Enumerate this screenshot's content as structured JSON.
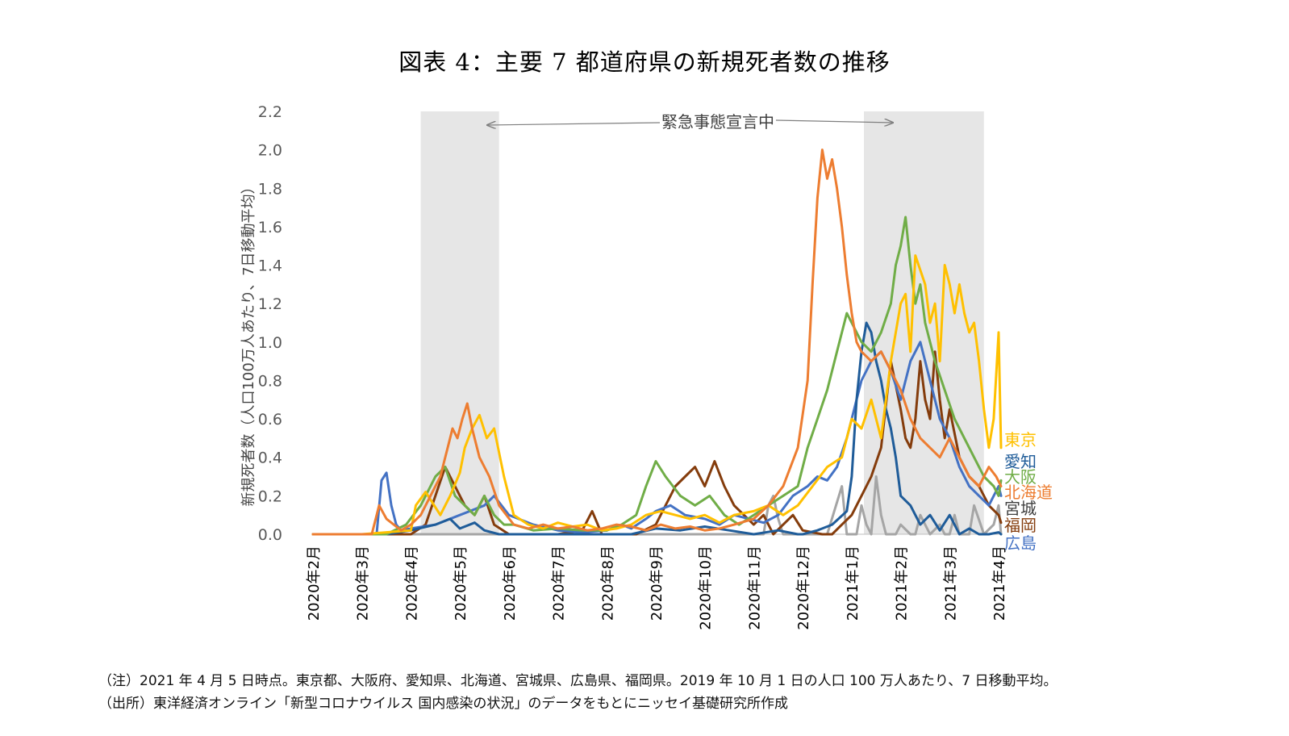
{
  "title": "図表 4：主要 7 都道府県の新規死者数の推移",
  "notes": {
    "note": "（注）2021 年 4 月 5 日時点。東京都、大阪府、愛知県、北海道、宮城県、広島県、福岡県。2019 年 10 月 1 日の人口 100 万人あたり、7 日移動平均。",
    "source": "（出所）東洋経済オンライン「新型コロナウイルス 国内感染の状況」のデータをもとにニッセイ基礎研究所作成"
  },
  "chart_data": {
    "type": "line",
    "title": "図表 4：主要 7 都道府県の新規死者数の推移",
    "ylabel": "新規死者数（人口100万人あたり、7日移動平均）",
    "xlabel": "",
    "ylim": [
      0,
      2.2
    ],
    "yticks": [
      "0.0",
      "0.2",
      "0.4",
      "0.6",
      "0.8",
      "1.0",
      "1.2",
      "1.4",
      "1.6",
      "1.8",
      "2.0",
      "2.2"
    ],
    "x_range_months": [
      0,
      14
    ],
    "categories": [
      "2020年2月",
      "2020年3月",
      "2020年4月",
      "2020年5月",
      "2020年6月",
      "2020年7月",
      "2020年8月",
      "2020年9月",
      "2020年10月",
      "2020年11月",
      "2020年12月",
      "2021年1月",
      "2021年2月",
      "2021年3月",
      "2021年4月"
    ],
    "emergency_periods": [
      [
        2.2,
        3.8
      ],
      [
        11.25,
        13.7
      ]
    ],
    "annotation": "緊急事態宣言中",
    "series": [
      {
        "name": "東京",
        "color": "#FFC000",
        "x": [
          0,
          1,
          1.5,
          2,
          2.1,
          2.3,
          2.6,
          2.8,
          3,
          3.1,
          3.25,
          3.4,
          3.55,
          3.7,
          3.9,
          4.1,
          4.4,
          4.7,
          5,
          5.3,
          5.6,
          5.9,
          6.2,
          6.5,
          6.8,
          7.1,
          7.4,
          7.7,
          8,
          8.3,
          8.6,
          9,
          9.3,
          9.6,
          9.9,
          10.2,
          10.5,
          10.8,
          11,
          11.2,
          11.4,
          11.6,
          11.8,
          12,
          12.1,
          12.2,
          12.3,
          12.5,
          12.6,
          12.7,
          12.8,
          12.9,
          13,
          13.1,
          13.2,
          13.3,
          13.4,
          13.5,
          13.6,
          13.7,
          13.8,
          13.9,
          14,
          14.05
        ],
        "values": [
          0,
          0,
          0.01,
          0.02,
          0.15,
          0.22,
          0.1,
          0.2,
          0.32,
          0.45,
          0.55,
          0.62,
          0.5,
          0.55,
          0.3,
          0.1,
          0.05,
          0.03,
          0.06,
          0.04,
          0.05,
          0.02,
          0.03,
          0.05,
          0.1,
          0.12,
          0.1,
          0.08,
          0.1,
          0.06,
          0.1,
          0.12,
          0.15,
          0.1,
          0.15,
          0.25,
          0.35,
          0.4,
          0.6,
          0.55,
          0.7,
          0.5,
          0.9,
          1.2,
          1.25,
          0.95,
          1.45,
          1.3,
          1.1,
          1.2,
          0.9,
          1.4,
          1.3,
          1.15,
          1.3,
          1.15,
          1.05,
          1.1,
          0.9,
          0.65,
          0.45,
          0.6,
          1.05,
          0.45
        ]
      },
      {
        "name": "愛知",
        "color": "#1F5C99",
        "x": [
          0,
          1.5,
          2,
          2.5,
          2.8,
          3,
          3.3,
          3.5,
          3.8,
          4.5,
          5,
          6,
          6.5,
          7,
          7.5,
          8,
          8.5,
          9,
          9.5,
          9.9,
          10,
          10.3,
          10.6,
          10.9,
          11,
          11.05,
          11.1,
          11.2,
          11.3,
          11.4,
          11.5,
          11.6,
          11.7,
          11.8,
          11.9,
          12,
          12.2,
          12.4,
          12.6,
          12.8,
          13,
          13.2,
          13.4,
          13.6,
          13.8,
          14,
          14.05
        ],
        "values": [
          0,
          0,
          0.02,
          0.05,
          0.08,
          0.03,
          0.06,
          0.02,
          0,
          0,
          0,
          0,
          0,
          0.03,
          0.02,
          0.04,
          0.02,
          0,
          0.02,
          0,
          0,
          0.02,
          0.05,
          0.12,
          0.3,
          0.5,
          0.7,
          0.95,
          1.1,
          1.05,
          0.9,
          0.8,
          0.65,
          0.55,
          0.4,
          0.2,
          0.15,
          0.05,
          0.1,
          0.02,
          0.1,
          0,
          0.03,
          0,
          0,
          0.01,
          0
        ]
      },
      {
        "name": "大阪",
        "color": "#70AD47",
        "x": [
          0,
          1.5,
          1.9,
          2.2,
          2.5,
          2.7,
          2.9,
          3.1,
          3.3,
          3.5,
          3.7,
          3.9,
          4.1,
          4.5,
          5,
          5.5,
          6,
          6.3,
          6.6,
          6.8,
          7,
          7.2,
          7.5,
          7.8,
          8.1,
          8.4,
          8.7,
          9,
          9.3,
          9.6,
          9.9,
          10.1,
          10.3,
          10.5,
          10.7,
          10.9,
          11,
          11.2,
          11.4,
          11.6,
          11.8,
          11.9,
          12,
          12.1,
          12.2,
          12.3,
          12.4,
          12.5,
          12.7,
          12.9,
          13.1,
          13.3,
          13.5,
          13.7,
          13.9,
          14,
          14.05
        ],
        "values": [
          0,
          0,
          0.05,
          0.15,
          0.3,
          0.35,
          0.2,
          0.15,
          0.1,
          0.2,
          0.1,
          0.05,
          0.05,
          0.02,
          0.03,
          0.02,
          0.02,
          0.05,
          0.1,
          0.25,
          0.38,
          0.3,
          0.2,
          0.15,
          0.2,
          0.1,
          0.05,
          0.1,
          0.15,
          0.2,
          0.25,
          0.45,
          0.6,
          0.75,
          0.95,
          1.15,
          1.1,
          1.0,
          0.95,
          1.05,
          1.2,
          1.4,
          1.5,
          1.65,
          1.4,
          1.2,
          1.3,
          1.1,
          0.9,
          0.75,
          0.6,
          0.5,
          0.4,
          0.3,
          0.25,
          0.2,
          0.28
        ]
      },
      {
        "name": "北海道",
        "color": "#ED7D31",
        "x": [
          0,
          1.2,
          1.35,
          1.5,
          1.8,
          2,
          2.2,
          2.4,
          2.6,
          2.75,
          2.85,
          2.95,
          3.05,
          3.15,
          3.25,
          3.4,
          3.6,
          3.8,
          4.1,
          4.4,
          4.7,
          5,
          5.3,
          5.6,
          5.9,
          6.2,
          6.5,
          6.8,
          7.1,
          7.4,
          7.7,
          8,
          8.3,
          8.6,
          9,
          9.3,
          9.6,
          9.9,
          10.1,
          10.2,
          10.3,
          10.4,
          10.5,
          10.6,
          10.7,
          10.8,
          10.9,
          11,
          11.1,
          11.2,
          11.4,
          11.6,
          11.8,
          12,
          12.2,
          12.4,
          12.6,
          12.8,
          13,
          13.2,
          13.4,
          13.6,
          13.8,
          13.95,
          14.05
        ],
        "values": [
          0,
          0,
          0.15,
          0.08,
          0.02,
          0.05,
          0.1,
          0.2,
          0.3,
          0.45,
          0.55,
          0.5,
          0.6,
          0.68,
          0.55,
          0.4,
          0.3,
          0.15,
          0.05,
          0.03,
          0.05,
          0.03,
          0.04,
          0.02,
          0.03,
          0.05,
          0.04,
          0.02,
          0.05,
          0.03,
          0.04,
          0.02,
          0.03,
          0.05,
          0.08,
          0.15,
          0.25,
          0.45,
          0.8,
          1.3,
          1.75,
          2.0,
          1.85,
          1.95,
          1.8,
          1.6,
          1.35,
          1.15,
          1.0,
          0.95,
          0.9,
          0.95,
          0.85,
          0.75,
          0.6,
          0.5,
          0.45,
          0.4,
          0.5,
          0.4,
          0.3,
          0.25,
          0.35,
          0.3,
          0.25
        ]
      },
      {
        "name": "宮城",
        "color": "#A5A5A5",
        "x": [
          0,
          9.2,
          9.3,
          9.4,
          9.5,
          9.6,
          10,
          10.5,
          10.8,
          10.9,
          11,
          11.1,
          11.2,
          11.3,
          11.4,
          11.5,
          11.6,
          11.7,
          11.8,
          11.9,
          12,
          12.2,
          12.3,
          12.4,
          12.6,
          12.8,
          12.9,
          13,
          13.1,
          13.2,
          13.3,
          13.4,
          13.5,
          13.7,
          13.9,
          14,
          14.05
        ],
        "values": [
          0,
          0,
          0.15,
          0.2,
          0.08,
          0,
          0,
          0,
          0.25,
          0,
          0,
          0,
          0.15,
          0.05,
          0,
          0.3,
          0.1,
          0,
          0,
          0,
          0.05,
          0,
          0,
          0.1,
          0,
          0.05,
          0,
          0,
          0.1,
          0,
          0,
          0,
          0.15,
          0,
          0.05,
          0.15,
          0
        ]
      },
      {
        "name": "福岡",
        "color": "#843C0C",
        "x": [
          0,
          2,
          2.3,
          2.5,
          2.7,
          2.9,
          3.1,
          3.3,
          3.5,
          3.7,
          4,
          4.5,
          5,
          5.5,
          5.7,
          5.9,
          6.2,
          6.6,
          7,
          7.2,
          7.4,
          7.6,
          7.8,
          8,
          8.2,
          8.4,
          8.6,
          8.8,
          9,
          9.2,
          9.4,
          9.6,
          9.8,
          10,
          10.4,
          10.6,
          10.8,
          11,
          11.2,
          11.4,
          11.6,
          11.8,
          12,
          12.1,
          12.2,
          12.3,
          12.4,
          12.5,
          12.6,
          12.7,
          12.8,
          12.9,
          13,
          13.2,
          13.4,
          13.6,
          13.8,
          14,
          14.05
        ],
        "values": [
          0,
          0,
          0.05,
          0.2,
          0.35,
          0.25,
          0.15,
          0.1,
          0.2,
          0.05,
          0,
          0,
          0,
          0.02,
          0.12,
          0,
          0,
          0,
          0.05,
          0.15,
          0.25,
          0.3,
          0.35,
          0.25,
          0.38,
          0.25,
          0.15,
          0.1,
          0.05,
          0.1,
          0,
          0.05,
          0.1,
          0.02,
          0,
          0,
          0.05,
          0.1,
          0.2,
          0.3,
          0.45,
          0.9,
          0.65,
          0.5,
          0.45,
          0.6,
          0.9,
          0.7,
          0.6,
          0.95,
          0.7,
          0.5,
          0.65,
          0.4,
          0.3,
          0.25,
          0.15,
          0.1,
          0.06
        ]
      },
      {
        "name": "広島",
        "color": "#4472C4",
        "x": [
          0,
          1.3,
          1.4,
          1.5,
          1.6,
          1.7,
          1.8,
          2,
          2.5,
          3,
          3.5,
          3.7,
          4,
          4.5,
          5,
          5.5,
          6,
          6.3,
          6.5,
          6.8,
          7,
          7.3,
          7.6,
          8,
          8.3,
          8.6,
          8.9,
          9.2,
          9.5,
          9.8,
          10.1,
          10.3,
          10.5,
          10.7,
          10.9,
          11,
          11.1,
          11.2,
          11.4,
          11.6,
          11.8,
          12,
          12.2,
          12.4,
          12.6,
          12.8,
          13,
          13.2,
          13.4,
          13.6,
          13.8,
          14,
          14.05
        ],
        "values": [
          0,
          0,
          0.28,
          0.32,
          0.15,
          0.05,
          0.02,
          0.03,
          0.05,
          0.1,
          0.15,
          0.2,
          0.1,
          0.05,
          0.02,
          0.01,
          0.02,
          0.05,
          0.03,
          0.08,
          0.12,
          0.15,
          0.1,
          0.08,
          0.05,
          0.1,
          0.08,
          0.06,
          0.1,
          0.2,
          0.25,
          0.3,
          0.28,
          0.35,
          0.5,
          0.6,
          0.7,
          0.8,
          0.9,
          0.95,
          0.85,
          0.7,
          0.9,
          1.0,
          0.8,
          0.6,
          0.5,
          0.35,
          0.25,
          0.2,
          0.15,
          0.25,
          0.2
        ]
      }
    ]
  }
}
